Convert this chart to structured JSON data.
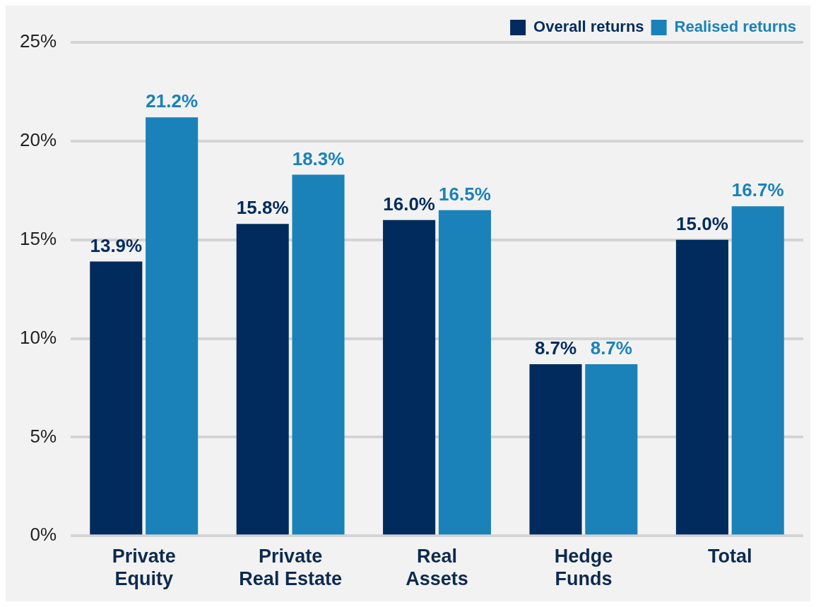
{
  "chart_data": {
    "type": "bar",
    "categories": [
      "Private\nEquity",
      "Private\nReal Estate",
      "Real\nAssets",
      "Hedge\nFunds",
      "Total"
    ],
    "series": [
      {
        "name": "Overall returns",
        "color": "#002b5c",
        "values": [
          13.9,
          15.8,
          16.0,
          8.7,
          15.0
        ],
        "value_labels": [
          "13.9%",
          "15.8%",
          "16.0%",
          "8.7%",
          "15.0%"
        ]
      },
      {
        "name": "Realised returns",
        "color": "#1a82b9",
        "values": [
          21.2,
          18.3,
          16.5,
          8.7,
          16.7
        ],
        "value_labels": [
          "21.2%",
          "18.3%",
          "16.5%",
          "8.7%",
          "16.7%"
        ]
      }
    ],
    "ylim": [
      0,
      25
    ],
    "yticks": [
      {
        "value": 0,
        "label": "0%"
      },
      {
        "value": 5,
        "label": "5%"
      },
      {
        "value": 10,
        "label": "10%"
      },
      {
        "value": 15,
        "label": "15%"
      },
      {
        "value": 20,
        "label": "20%"
      },
      {
        "value": 25,
        "label": "25%"
      }
    ],
    "grid": "y",
    "legend": "top right"
  }
}
